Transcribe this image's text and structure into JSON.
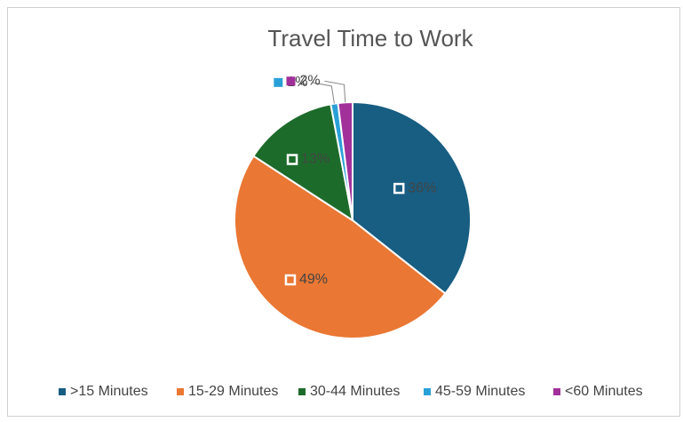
{
  "chart_data": {
    "type": "pie",
    "title": "Travel Time to Work",
    "categories": [
      ">15 Minutes",
      "15-29 Minutes",
      "30-44 Minutes",
      "45-59 Minutes",
      "<60 Minutes"
    ],
    "values": [
      36,
      49,
      13,
      1,
      2
    ],
    "value_labels": [
      "36%",
      "49%",
      "13%",
      "1%",
      "2%"
    ],
    "colors": [
      "#185d82",
      "#ea7733",
      "#1d6b2b",
      "#2aa0d8",
      "#a1309b"
    ],
    "legend": "bottom"
  }
}
